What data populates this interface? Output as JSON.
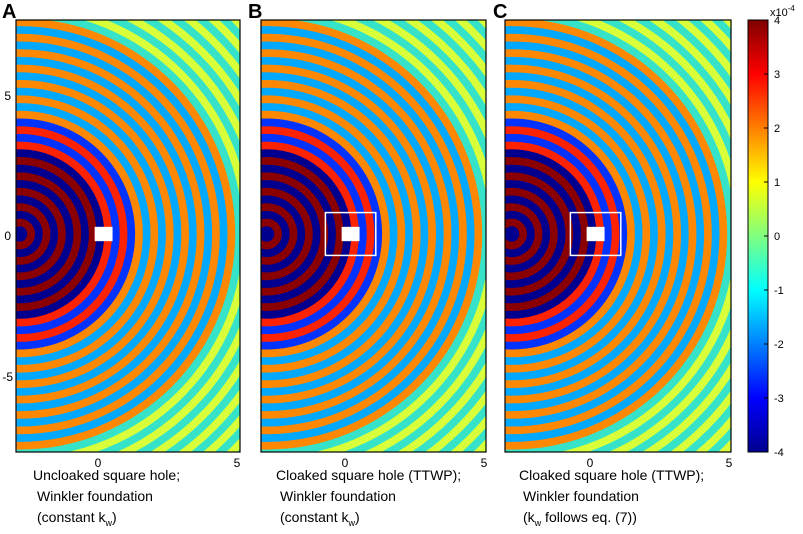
{
  "chart_data": [
    {
      "type": "heatmap",
      "panel_label": "A",
      "caption": {
        "line1": "Uncloaked square hole;",
        "line2": "Winkler foundation",
        "line3_pre": "(constant k",
        "line3_sub": "w",
        "line3_post": ")"
      },
      "cloak_box": false,
      "x_ticks": [
        "0",
        "5"
      ],
      "y_ticks": [
        "5",
        "0",
        "-5"
      ],
      "xlim": [
        -3.5,
        5
      ],
      "ylim": [
        -8,
        8
      ]
    },
    {
      "type": "heatmap",
      "panel_label": "B",
      "caption": {
        "line1": "Cloaked square hole (TTWP);",
        "line2": "Winkler foundation",
        "line3_pre": "(constant k",
        "line3_sub": "w",
        "line3_post": ")"
      },
      "cloak_box": true,
      "x_ticks": [
        "0",
        "5"
      ],
      "xlim": [
        -3.5,
        5
      ],
      "ylim": [
        -8,
        8
      ]
    },
    {
      "type": "heatmap",
      "panel_label": "C",
      "caption": {
        "line1": "Cloaked square hole (TTWP);",
        "line2": "Winkler foundation",
        "line3_pre": "(k",
        "line3_sub": "w",
        "line3_post": " follows eq. (7))"
      },
      "cloak_box": true,
      "x_ticks": [
        "0",
        "5"
      ],
      "xlim": [
        -3.5,
        5
      ],
      "ylim": [
        -8,
        8
      ]
    }
  ],
  "colorbar": {
    "ticks": [
      "4",
      "3",
      "2",
      "1",
      "0",
      "-1",
      "-2",
      "-3",
      "-4"
    ],
    "range": [
      -4,
      4
    ],
    "exponent_base": "x10",
    "exponent_power": "-4",
    "colormap": "jet",
    "colors": [
      "#00008f",
      "#0000ff",
      "#00ffff",
      "#ffff00",
      "#ff0000",
      "#800000"
    ]
  },
  "field": {
    "source_x": -2.8,
    "hole_x": 0.2,
    "hole_half_size": 0.2,
    "cloak_half_size": 0.9,
    "wavelength": 0.55
  }
}
